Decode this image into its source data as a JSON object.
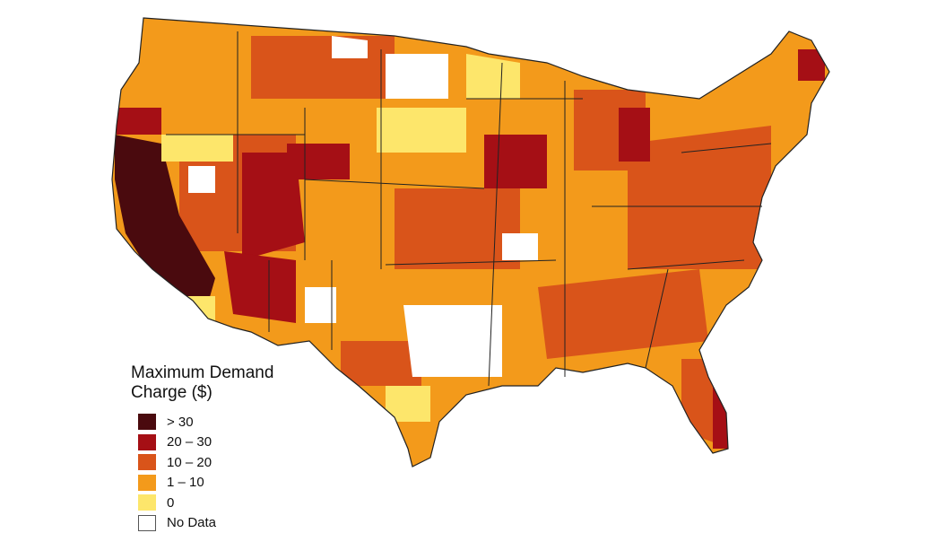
{
  "legend": {
    "title_line1": "Maximum Demand",
    "title_line2": "Charge ($)",
    "items": [
      {
        "label": "> 30",
        "color": "#4a0a0e"
      },
      {
        "label": "20 – 30",
        "color": "#a50f15"
      },
      {
        "label": "10 – 20",
        "color": "#d9541a"
      },
      {
        "label": "1 – 10",
        "color": "#f39a1b"
      },
      {
        "label": "0",
        "color": "#fde66b"
      },
      {
        "label": "No Data",
        "color": "#ffffff"
      }
    ]
  }
}
